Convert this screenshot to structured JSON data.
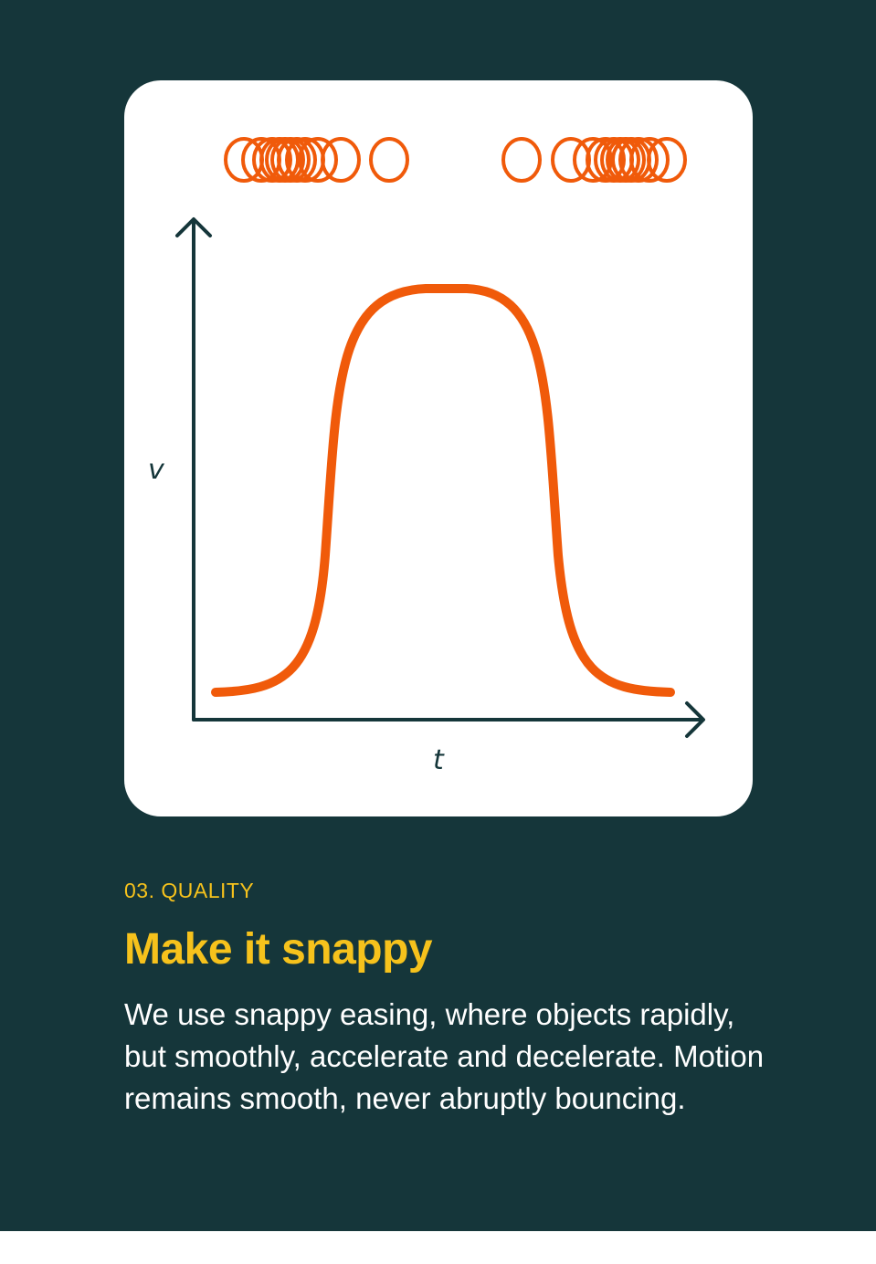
{
  "colors": {
    "background": "#15363a",
    "panel": "#ffffff",
    "curve": "#f05a0a",
    "axis": "#15363a",
    "accent": "#f6c21c",
    "body_text": "#ffffff"
  },
  "diagram": {
    "x_axis_label": "t",
    "y_axis_label": "v",
    "icons": [
      "arrow-up-icon",
      "arrow-right-icon",
      "motion-ring-icon"
    ]
  },
  "chart_data": {
    "type": "line",
    "title": "",
    "xlabel": "t",
    "ylabel": "v",
    "shape": "snappy ease-in-out velocity profile",
    "grid": false
  },
  "section": {
    "eyebrow": "03. QUALITY",
    "title": "Make it snappy",
    "body": "We use snappy easing, where objects rapidly, but smoothly, accelerate and decelerate. Motion remains smooth, never abruptly bouncing."
  }
}
